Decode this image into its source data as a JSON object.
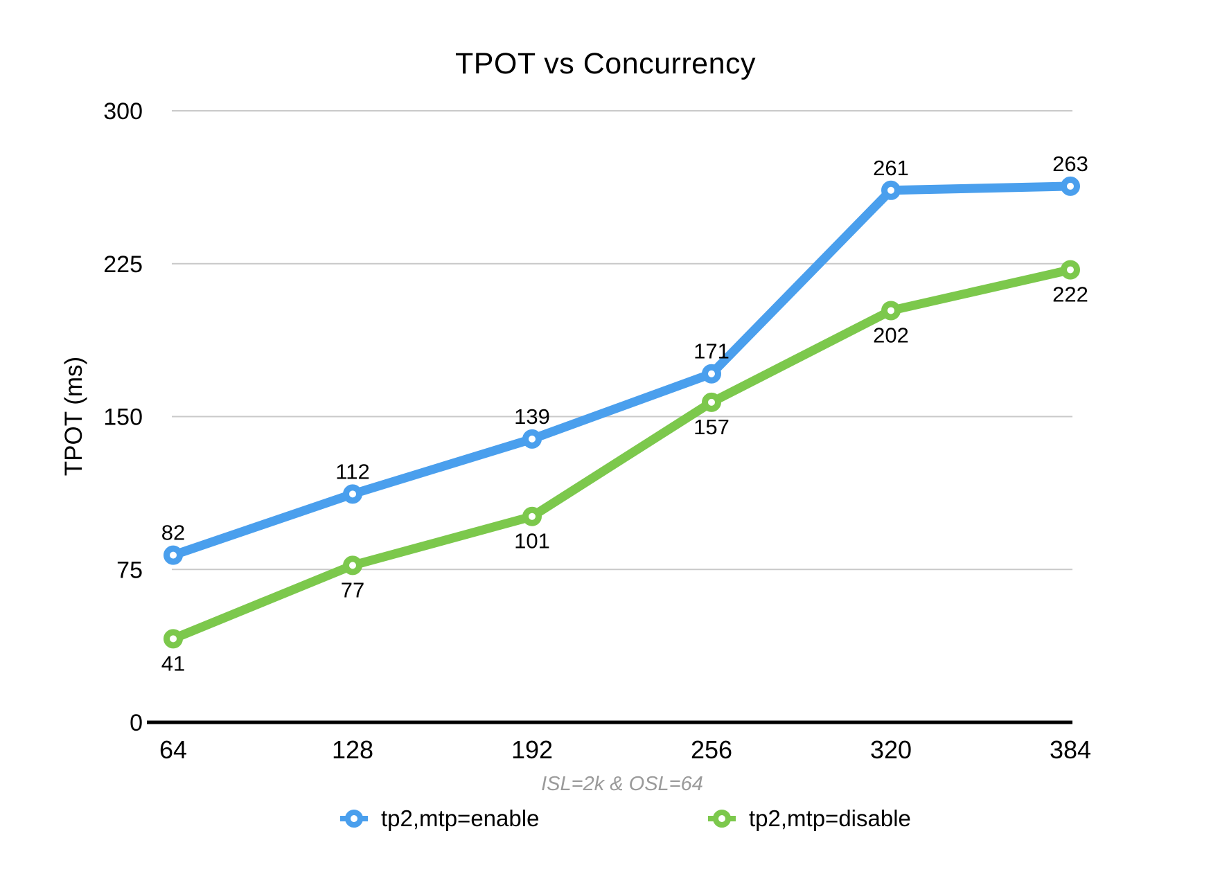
{
  "colors": {
    "enable_blue": "#4A9FED",
    "disable_green": "#7CC84C",
    "gridline": "#C9C9C9",
    "axis": "#000000",
    "caption_gray": "#9A9A9A",
    "background": "#FFFFFF"
  },
  "chart_data": {
    "type": "line",
    "title": "TPOT vs Concurrency",
    "xlabel": "",
    "ylabel": "TPOT (ms)",
    "annotation": "ISL=2k & OSL=64",
    "x": [
      64,
      128,
      192,
      256,
      320,
      384
    ],
    "series": [
      {
        "name": "tp2,mtp=enable",
        "color": "#4A9FED",
        "values": [
          82,
          112,
          139,
          171,
          261,
          263
        ],
        "label_position": "above"
      },
      {
        "name": "tp2,mtp=disable",
        "color": "#7CC84C",
        "values": [
          41,
          77,
          101,
          157,
          202,
          222
        ],
        "label_position": "below"
      }
    ],
    "ylim": [
      0,
      300
    ],
    "yticks": [
      0,
      75,
      150,
      225,
      300
    ],
    "grid": true,
    "legend_position": "bottom",
    "marker_style": "open-circle"
  }
}
